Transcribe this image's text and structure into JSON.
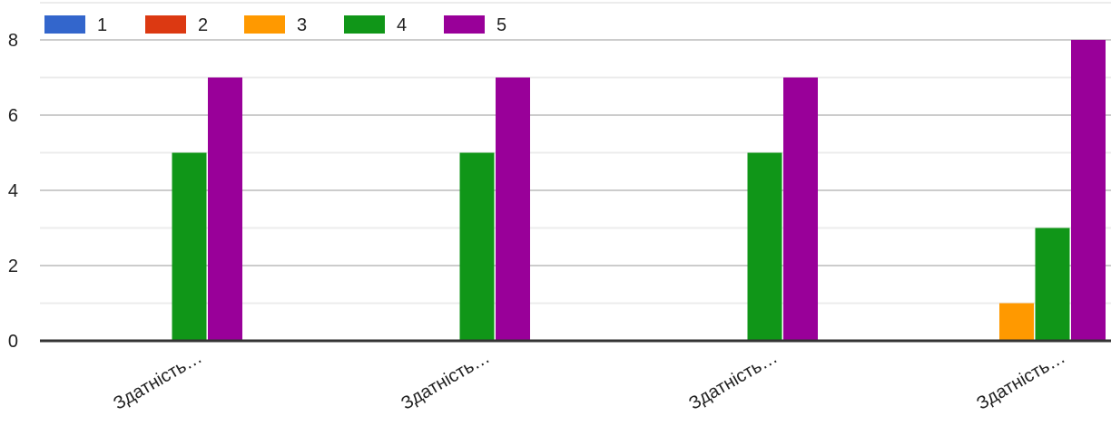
{
  "chart_data": {
    "type": "bar",
    "title": "",
    "xlabel": "",
    "ylabel": "",
    "ylim": [
      0,
      8
    ],
    "y_ticks": [
      0,
      2,
      4,
      6,
      8
    ],
    "grid": true,
    "legend_position": "top-left",
    "categories": [
      "Здатність…",
      "Здатність…",
      "Здатність…",
      "Здатність…"
    ],
    "series": [
      {
        "name": "1",
        "color": "#3366cc",
        "values": [
          0,
          0,
          0,
          0
        ]
      },
      {
        "name": "2",
        "color": "#dc3912",
        "values": [
          0,
          0,
          0,
          0
        ]
      },
      {
        "name": "3",
        "color": "#ff9900",
        "values": [
          0,
          0,
          0,
          1
        ]
      },
      {
        "name": "4",
        "color": "#109618",
        "values": [
          5,
          5,
          5,
          3
        ]
      },
      {
        "name": "5",
        "color": "#990099",
        "values": [
          7,
          7,
          7,
          8
        ]
      }
    ]
  }
}
